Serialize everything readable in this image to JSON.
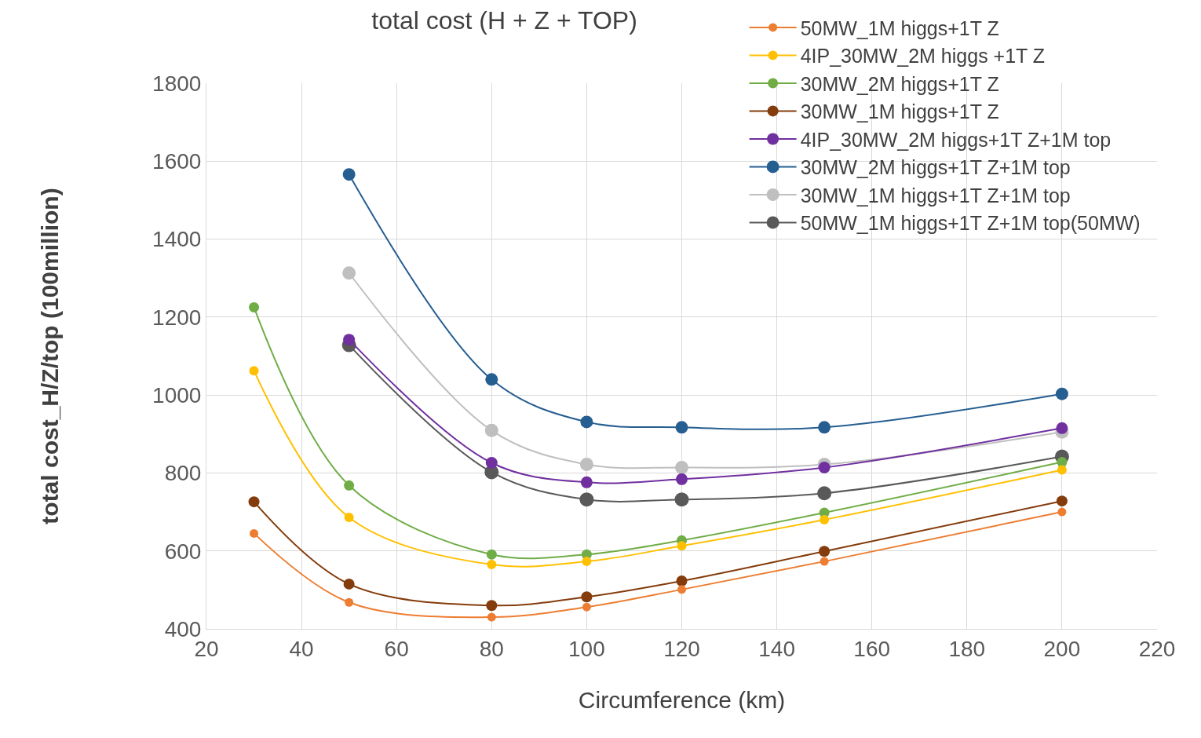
{
  "chart_data": {
    "type": "line",
    "title": "total cost (H + Z + TOP)",
    "xlabel": "Circumference (km)",
    "ylabel": "total cost_H/Z/top (100million)",
    "x": [
      30,
      50,
      80,
      100,
      120,
      150,
      200
    ],
    "series": [
      {
        "name": "50MW_1M higgs+1T Z",
        "color": "#ed7d31",
        "values": [
          645,
          468,
          430,
          456,
          501,
          573,
          700
        ]
      },
      {
        "name": "4IP_30MW_2M higgs +1T Z",
        "color": "#ffc000",
        "values": [
          1062,
          686,
          565,
          573,
          613,
          680,
          808
        ]
      },
      {
        "name": "30MW_2M higgs+1T Z",
        "color": "#70ad47",
        "values": [
          1225,
          768,
          591,
          591,
          627,
          698,
          828
        ]
      },
      {
        "name": "30MW_1M higgs+1T Z",
        "color": "#843c0c",
        "values": [
          726,
          515,
          460,
          482,
          523,
          599,
          728
        ]
      },
      {
        "name": "4IP_30MW_2M higgs+1T Z+1M top",
        "color": "#7030a0",
        "values": [
          null,
          1142,
          826,
          776,
          784,
          814,
          915
        ]
      },
      {
        "name": "30MW_2M higgs+1T Z+1M top",
        "color": "#255e91",
        "values": [
          null,
          1566,
          1040,
          931,
          917,
          917,
          1003
        ]
      },
      {
        "name": "30MW_1M higgs+1T Z+1M top",
        "color": "#bfbfbf",
        "values": [
          null,
          1313,
          909,
          822,
          814,
          822,
          905
        ]
      },
      {
        "name": "50MW_1M higgs+1T Z+1M top(50MW)",
        "color": "#595959",
        "values": [
          null,
          1128,
          802,
          732,
          732,
          748,
          842
        ]
      }
    ],
    "xlim": [
      20,
      220
    ],
    "xticks": [
      20,
      40,
      60,
      80,
      100,
      120,
      140,
      160,
      180,
      200,
      220
    ],
    "ylim": [
      400,
      1800
    ],
    "yticks": [
      400,
      600,
      800,
      1000,
      1200,
      1400,
      1600,
      1800
    ],
    "grid": true,
    "legend": "top right",
    "marker": "circle",
    "line_style": "solid"
  }
}
